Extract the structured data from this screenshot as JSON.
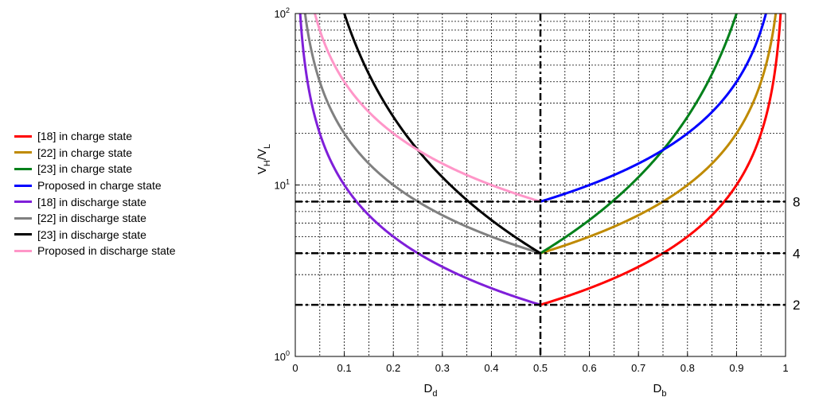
{
  "chart_data": {
    "type": "line",
    "x_left": {
      "label_main": "D",
      "label_sub": "d",
      "range": [
        0,
        0.5
      ],
      "ticks": [
        "0",
        "0.1",
        "0.2",
        "0.3",
        "0.4",
        "0.5"
      ]
    },
    "x_right": {
      "label_main": "D",
      "label_sub": "b",
      "range": [
        0.5,
        1
      ],
      "ticks": [
        "0.6",
        "0.7",
        "0.8",
        "0.9",
        "1"
      ]
    },
    "y": {
      "label_v1": "V",
      "label_s1": "H",
      "label_slash": "/",
      "label_v2": "V",
      "label_s2": "L",
      "scale": "log",
      "range": [
        1,
        100
      ],
      "ticks": [
        {
          "base": "10",
          "exp": "0",
          "value": 1
        },
        {
          "base": "10",
          "exp": "1",
          "value": 10
        },
        {
          "base": "10",
          "exp": "2",
          "value": 100
        }
      ]
    },
    "grid": true,
    "reference_lines": [
      {
        "type": "horizontal",
        "value": 8,
        "label": "8"
      },
      {
        "type": "horizontal",
        "value": 4,
        "label": "4"
      },
      {
        "type": "horizontal",
        "value": 2,
        "label": "2"
      },
      {
        "type": "vertical",
        "value": 0.5
      }
    ],
    "series": [
      {
        "name": "[18] in charge state",
        "side": "b",
        "color": "#ff0000",
        "formula": "1/(1-D)"
      },
      {
        "name": "[22] in charge state",
        "side": "b",
        "color": "#bf8a00",
        "formula": "2/(1-D)"
      },
      {
        "name": "[23] in charge state",
        "side": "b",
        "color": "#00801a",
        "formula": "1/(1-D)^2"
      },
      {
        "name": "Proposed in charge state",
        "side": "b",
        "color": "#0000ff",
        "formula": "4/(1-D)"
      },
      {
        "name": "[18] in discharge state",
        "side": "d",
        "color": "#7f1fd9",
        "formula": "1/D"
      },
      {
        "name": "[22] in discharge state",
        "side": "d",
        "color": "#808080",
        "formula": "2/D"
      },
      {
        "name": "[23] in discharge state",
        "side": "d",
        "color": "#000000",
        "formula": "1/D^2"
      },
      {
        "name": "Proposed in discharge state",
        "side": "d",
        "color": "#ff96c8",
        "formula": "4/D"
      }
    ],
    "legend_placement": "left"
  }
}
